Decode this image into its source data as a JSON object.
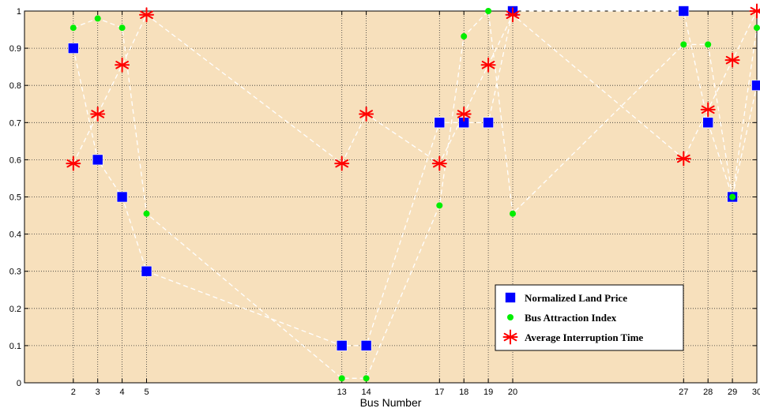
{
  "chart_data": {
    "type": "line",
    "title": "",
    "xlabel": "Bus Number",
    "ylabel": "",
    "xlim": [
      0,
      30
    ],
    "ylim": [
      0,
      1
    ],
    "grid": true,
    "background_color": "#f7e0bc",
    "x_ticks": [
      "2",
      "3",
      "4",
      "5",
      "13",
      "14",
      "17",
      "18",
      "19",
      "20",
      "27",
      "28",
      "29",
      "30"
    ],
    "y_ticks": [
      "0",
      "0.1",
      "0.2",
      "0.3",
      "0.4",
      "0.5",
      "0.6",
      "0.7",
      "0.8",
      "0.9",
      "1"
    ],
    "x": [
      2,
      3,
      4,
      5,
      13,
      14,
      17,
      18,
      19,
      20,
      27,
      28,
      29,
      30
    ],
    "legend_position": "bottom-right",
    "series": [
      {
        "name": "Normalized Land Price",
        "marker": "square",
        "color": "#0000ff",
        "values": [
          0.9,
          0.6,
          0.5,
          0.3,
          0.1,
          0.1,
          0.7,
          0.7,
          0.7,
          1.0,
          1.0,
          0.7,
          0.5,
          0.8
        ]
      },
      {
        "name": "Bus Attraction Index",
        "marker": "circle",
        "color": "#00ee00",
        "values": [
          0.955,
          0.98,
          0.955,
          0.455,
          0.012,
          0.012,
          0.477,
          0.932,
          1.0,
          0.455,
          0.91,
          0.91,
          0.5,
          0.955
        ]
      },
      {
        "name": "Average Interruption Time",
        "marker": "asterisk",
        "color": "#ff0000",
        "values": [
          0.59,
          0.723,
          0.855,
          0.99,
          0.59,
          0.723,
          0.59,
          0.723,
          0.855,
          0.99,
          0.603,
          0.735,
          0.868,
          1.0
        ]
      }
    ]
  }
}
